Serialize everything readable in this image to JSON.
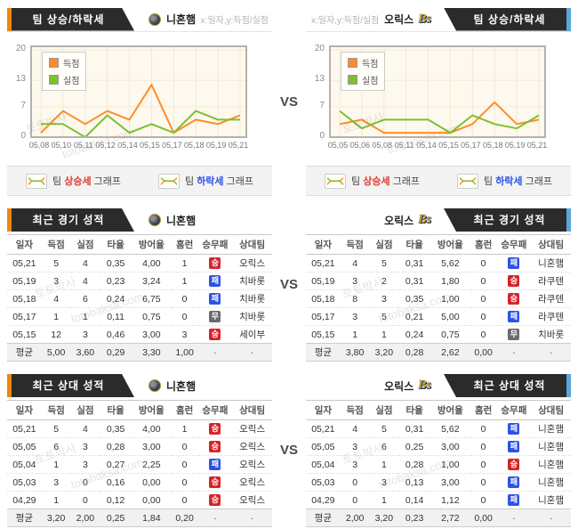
{
  "vs": "VS",
  "watermark": {
    "kr": "토토박사",
    "en": "totobaksa.com"
  },
  "labels": {
    "avg": "평균"
  },
  "badges": {
    "승": {
      "cls": "win"
    },
    "패": {
      "cls": "loss"
    },
    "무": {
      "cls": "draw"
    }
  },
  "colors": {
    "accent_orange": "#f0860f",
    "accent_blue": "#58a7dd",
    "banner_bg": "#2b2b2b",
    "score_line": "#ff8c2a",
    "concede_line": "#7cc12e",
    "win": "#d6242b",
    "loss": "#2c53e5",
    "draw": "#6b6b6b",
    "plot_bg": "#fdf9ee"
  },
  "top": {
    "left": {
      "banner": "팀 상승/하락세",
      "team": "니혼햄",
      "axis_hint": "x:일자,y:득점/실점"
    },
    "right": {
      "banner": "팀 상승/하락세",
      "team": "오릭스",
      "axis_hint": "x:일자,y:득점/실점",
      "logo_text": "Bs"
    }
  },
  "chart_data": [
    {
      "type": "line",
      "title": "니혼햄 팀 상승/하락세",
      "x": [
        "05,08",
        "05,10",
        "05,11",
        "05,12",
        "05,14",
        "05,15",
        "05,17",
        "05,18",
        "05,19",
        "05,21"
      ],
      "series": [
        {
          "name": "득점",
          "color": "#ff8c2a",
          "values": [
            1,
            6,
            3,
            6,
            4,
            12,
            1,
            4,
            3,
            5
          ]
        },
        {
          "name": "실점",
          "color": "#7cc12e",
          "values": [
            3,
            3,
            0,
            5,
            1,
            3,
            1,
            6,
            4,
            4
          ]
        }
      ],
      "xlabel": "일자",
      "ylabel": "득점/실점",
      "ylim": [
        0,
        20
      ],
      "yticks": [
        0,
        7,
        13,
        20
      ],
      "grid": true,
      "legend_position": "top-left"
    },
    {
      "type": "line",
      "title": "오릭스 팀 상승/하락세",
      "x": [
        "05,05",
        "05,06",
        "05,08",
        "05,11",
        "05,14",
        "05,15",
        "05,17",
        "05,18",
        "05,19",
        "05,21"
      ],
      "series": [
        {
          "name": "득점",
          "color": "#ff8c2a",
          "values": [
            3,
            4,
            1,
            1,
            1,
            1,
            3,
            8,
            3,
            4
          ]
        },
        {
          "name": "실점",
          "color": "#7cc12e",
          "values": [
            6,
            2,
            4,
            4,
            4,
            1,
            5,
            3,
            2,
            5
          ]
        }
      ],
      "xlabel": "일자",
      "ylabel": "득점/실점",
      "ylim": [
        0,
        20
      ],
      "yticks": [
        0,
        7,
        13,
        20
      ],
      "grid": true,
      "legend_position": "top-left"
    }
  ],
  "strip": {
    "rise_pre": "팀 ",
    "rise_word": "상승세",
    "rise_post": " 그래프",
    "fall_pre": "팀 ",
    "fall_word": "하락세",
    "fall_post": " 그래프"
  },
  "columns": [
    "일자",
    "득점",
    "실점",
    "타율",
    "방어율",
    "홈런",
    "승무패",
    "상대팀"
  ],
  "sections": [
    {
      "title": "최근 경기 성적",
      "left": {
        "team": "니혼햄",
        "rows": [
          [
            "05,21",
            "5",
            "4",
            "0,35",
            "4,00",
            "1",
            "승",
            "오릭스"
          ],
          [
            "05,19",
            "3",
            "4",
            "0,23",
            "3,24",
            "1",
            "패",
            "치바롯"
          ],
          [
            "05,18",
            "4",
            "6",
            "0,24",
            "6,75",
            "0",
            "패",
            "치바롯"
          ],
          [
            "05,17",
            "1",
            "1",
            "0,11",
            "0,75",
            "0",
            "무",
            "치바롯"
          ],
          [
            "05,15",
            "12",
            "3",
            "0,46",
            "3,00",
            "3",
            "승",
            "세이부"
          ],
          [
            "평균",
            "5,00",
            "3,60",
            "0,29",
            "3,30",
            "1,00",
            "·",
            "·"
          ]
        ]
      },
      "right": {
        "team": "오릭스",
        "logo_text": "Bs",
        "rows": [
          [
            "05,21",
            "4",
            "5",
            "0,31",
            "5,62",
            "0",
            "패",
            "니혼햄"
          ],
          [
            "05,19",
            "3",
            "2",
            "0,31",
            "1,80",
            "0",
            "승",
            "라쿠텐"
          ],
          [
            "05,18",
            "8",
            "3",
            "0,35",
            "1,00",
            "0",
            "승",
            "라쿠텐"
          ],
          [
            "05,17",
            "3",
            "5",
            "0,21",
            "5,00",
            "0",
            "패",
            "라쿠텐"
          ],
          [
            "05,15",
            "1",
            "1",
            "0,24",
            "0,75",
            "0",
            "무",
            "치바롯"
          ],
          [
            "평균",
            "3,80",
            "3,20",
            "0,28",
            "2,62",
            "0,00",
            "·",
            "·"
          ]
        ]
      }
    },
    {
      "title": "최근 상대 성적",
      "left": {
        "team": "니혼햄",
        "rows": [
          [
            "05,21",
            "5",
            "4",
            "0,35",
            "4,00",
            "1",
            "승",
            "오릭스"
          ],
          [
            "05,05",
            "6",
            "3",
            "0,28",
            "3,00",
            "0",
            "승",
            "오릭스"
          ],
          [
            "05,04",
            "1",
            "3",
            "0,27",
            "2,25",
            "0",
            "패",
            "오릭스"
          ],
          [
            "05,03",
            "3",
            "0",
            "0,16",
            "0,00",
            "0",
            "승",
            "오릭스"
          ],
          [
            "04,29",
            "1",
            "0",
            "0,12",
            "0,00",
            "0",
            "승",
            "오릭스"
          ],
          [
            "평균",
            "3,20",
            "2,00",
            "0,25",
            "1,84",
            "0,20",
            "·",
            "·"
          ]
        ]
      },
      "right": {
        "team": "오릭스",
        "logo_text": "Bs",
        "rows": [
          [
            "05,21",
            "4",
            "5",
            "0,31",
            "5,62",
            "0",
            "패",
            "니혼햄"
          ],
          [
            "05,05",
            "3",
            "6",
            "0,25",
            "3,00",
            "0",
            "패",
            "니혼햄"
          ],
          [
            "05,04",
            "3",
            "1",
            "0,28",
            "1,00",
            "0",
            "승",
            "니혼햄"
          ],
          [
            "05,03",
            "0",
            "3",
            "0,13",
            "3,00",
            "0",
            "패",
            "니혼햄"
          ],
          [
            "04,29",
            "0",
            "1",
            "0,14",
            "1,12",
            "0",
            "패",
            "니혼햄"
          ],
          [
            "평균",
            "2,00",
            "3,20",
            "0,23",
            "2,72",
            "0,00",
            "·",
            "·"
          ]
        ]
      }
    }
  ]
}
